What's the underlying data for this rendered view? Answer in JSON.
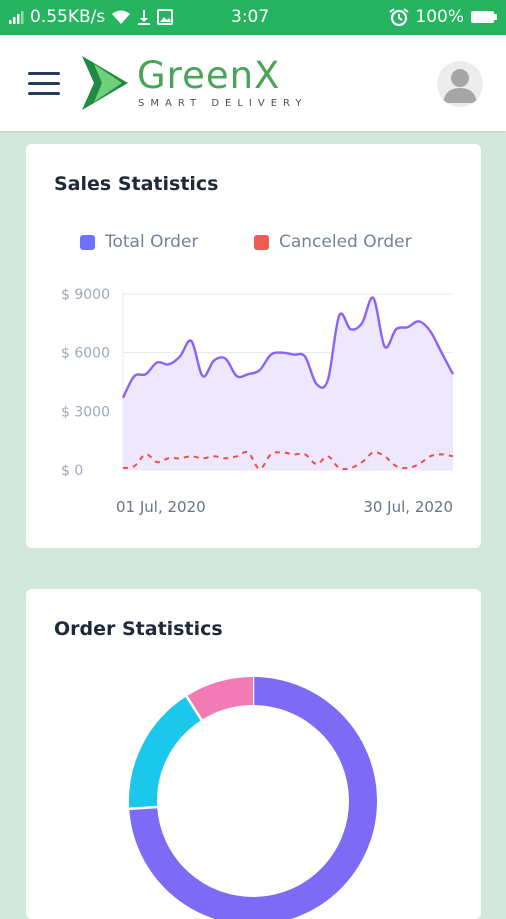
{
  "status_bar": {
    "network_speed": "0.55KB/s",
    "time": "3:07",
    "battery": "100%"
  },
  "app": {
    "brand_name": "GreenX",
    "brand_tagline": "SMART DELIVERY",
    "brand_color": "#4ba35a",
    "status_bar_color": "#26b461",
    "background_color": "#d3e8dd"
  },
  "sales_card": {
    "title": "Sales Statistics",
    "chart_data": {
      "type": "area",
      "title": "Sales Statistics",
      "x_start_label": "01 Jul, 2020",
      "x_end_label": "30 Jul, 2020",
      "y_ticks": [
        "$ 9000",
        "$ 6000",
        "$ 3000",
        "$ 0"
      ],
      "ylim": [
        0,
        9000
      ],
      "grid": true,
      "legend_position": "top",
      "series": [
        {
          "name": "Total Order",
          "color": "#6c72ff",
          "line_color": "#8b63f5",
          "values": [
            3700,
            4800,
            4900,
            5500,
            5400,
            5800,
            6600,
            4800,
            5600,
            5700,
            4800,
            4900,
            5100,
            5900,
            6000,
            5900,
            5800,
            4400,
            4600,
            7900,
            7200,
            7500,
            8800,
            6300,
            7200,
            7300,
            7600,
            7100,
            6000,
            4900
          ]
        },
        {
          "name": "Canceled Order",
          "color": "#ef5b50",
          "line_color": "#ef4d42",
          "values": [
            100,
            200,
            800,
            400,
            600,
            600,
            700,
            600,
            700,
            600,
            700,
            900,
            50,
            800,
            900,
            800,
            800,
            300,
            700,
            100,
            100,
            400,
            900,
            700,
            200,
            100,
            300,
            700,
            800,
            700
          ]
        }
      ]
    }
  },
  "order_card": {
    "title": "Order Statistics",
    "chart_data": {
      "type": "pie",
      "title": "Order Statistics",
      "slices": [
        {
          "label": "",
          "value": 74,
          "color": "#7d6bf6"
        },
        {
          "label": "",
          "value": 17,
          "color": "#1cc7ec"
        },
        {
          "label": "",
          "value": 9,
          "color": "#f27bb6"
        }
      ]
    }
  }
}
